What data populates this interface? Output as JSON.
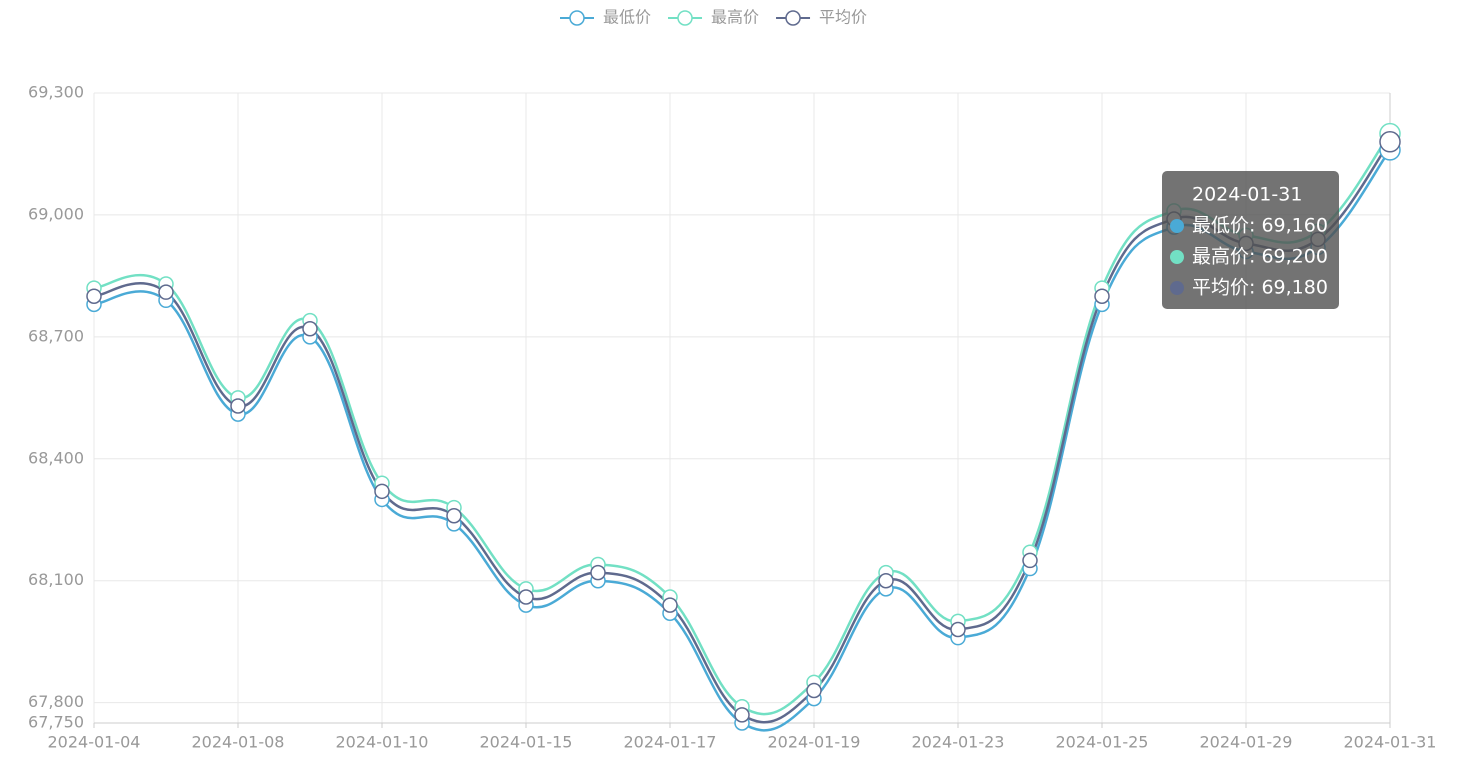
{
  "chart_data": {
    "type": "line",
    "categories": [
      "2024-01-04",
      null,
      "2024-01-08",
      null,
      "2024-01-10",
      null,
      "2024-01-15",
      null,
      "2024-01-17",
      null,
      "2024-01-19",
      null,
      "2024-01-23",
      null,
      "2024-01-25",
      null,
      "2024-01-29",
      null,
      "2024-01-31"
    ],
    "series": [
      {
        "name": "最低价",
        "color": "#4aaad6",
        "values": [
          68780,
          68790,
          68510,
          68700,
          68300,
          68240,
          68040,
          68100,
          68020,
          67750,
          67810,
          68080,
          67960,
          68130,
          68780,
          68970,
          68910,
          68920,
          69160
        ]
      },
      {
        "name": "最高价",
        "color": "#72e0c4",
        "values": [
          68820,
          68830,
          68550,
          68740,
          68340,
          68280,
          68080,
          68140,
          68060,
          67790,
          67850,
          68120,
          68000,
          68170,
          68820,
          69010,
          68950,
          68960,
          69200
        ]
      },
      {
        "name": "平均价",
        "color": "#5f6a8e",
        "values": [
          68800,
          68810,
          68530,
          68720,
          68320,
          68260,
          68060,
          68120,
          68040,
          67770,
          67830,
          68100,
          67980,
          68150,
          68800,
          68990,
          68930,
          68940,
          69180
        ]
      }
    ],
    "ylim": [
      67750,
      69300
    ],
    "yticks": [
      {
        "value": 67750,
        "label": "67,750"
      },
      {
        "value": 67800,
        "label": "67,800"
      },
      {
        "value": 68100,
        "label": "68,100"
      },
      {
        "value": 68400,
        "label": "68,400"
      },
      {
        "value": 68700,
        "label": "68,700"
      },
      {
        "value": 69000,
        "label": "69,000"
      },
      {
        "value": 69300,
        "label": "69,300"
      }
    ],
    "grid": true,
    "legend": "top",
    "tooltip": {
      "title": "2024-01-31",
      "items": [
        "最低价: 69,160",
        "最高价: 69,200",
        "平均价: 69,180"
      ]
    }
  }
}
